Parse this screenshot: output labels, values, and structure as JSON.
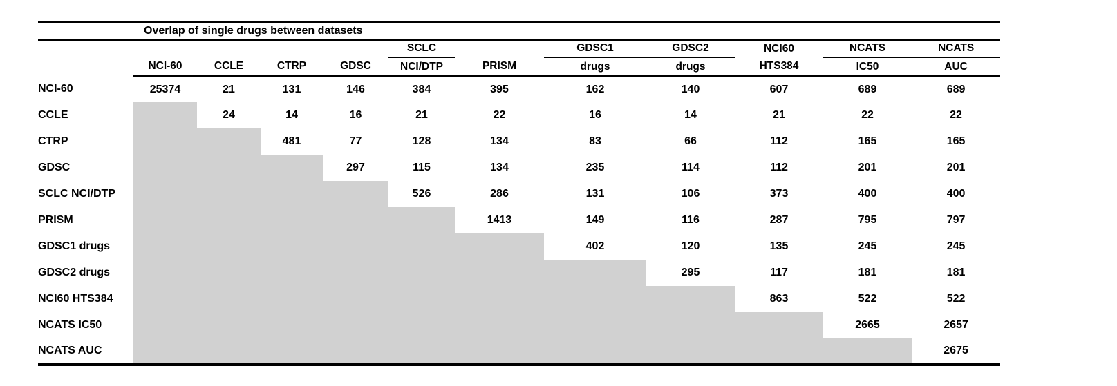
{
  "title": "Overlap of single drugs between datasets",
  "colors": {
    "lower_triangle_fill": "#d1d1d1",
    "text": "#000000",
    "rules": "#000000",
    "background": "#ffffff"
  },
  "table": {
    "columns": [
      {
        "key": "nci-60",
        "top": "",
        "label": "NCI-60",
        "group_underline": false
      },
      {
        "key": "ccle",
        "top": "",
        "label": "CCLE",
        "group_underline": false
      },
      {
        "key": "ctrp",
        "top": "",
        "label": "CTRP",
        "group_underline": false
      },
      {
        "key": "gdsc",
        "top": "",
        "label": "GDSC",
        "group_underline": false
      },
      {
        "key": "sclc-nci-dtp",
        "top": "SCLC",
        "label": "NCI/DTP",
        "group_underline": true
      },
      {
        "key": "prism",
        "top": "",
        "label": "PRISM",
        "group_underline": false
      },
      {
        "key": "gdsc1-drugs",
        "top": "GDSC1",
        "label": "drugs",
        "group_underline": true
      },
      {
        "key": "gdsc2-drugs",
        "top": "GDSC2",
        "label": "drugs",
        "group_underline": true
      },
      {
        "key": "nci60-hts384",
        "top": "NCI60",
        "label": "HTS384",
        "group_underline": false
      },
      {
        "key": "ncats-ic50",
        "top": "NCATS",
        "label": "IC50",
        "group_underline": true
      },
      {
        "key": "ncats-auc",
        "top": "NCATS",
        "label": "AUC",
        "group_underline": true
      }
    ],
    "rows": [
      {
        "label": "NCI-60",
        "values": [
          "25374",
          "21",
          "131",
          "146",
          "384",
          "395",
          "162",
          "140",
          "607",
          "689",
          "689"
        ]
      },
      {
        "label": "CCLE",
        "values": [
          null,
          "24",
          "14",
          "16",
          "21",
          "22",
          "16",
          "14",
          "21",
          "22",
          "22"
        ]
      },
      {
        "label": "CTRP",
        "values": [
          null,
          null,
          "481",
          "77",
          "128",
          "134",
          "83",
          "66",
          "112",
          "165",
          "165"
        ]
      },
      {
        "label": "GDSC",
        "values": [
          null,
          null,
          null,
          "297",
          "115",
          "134",
          "235",
          "114",
          "112",
          "201",
          "201"
        ]
      },
      {
        "label": "SCLC NCI/DTP",
        "values": [
          null,
          null,
          null,
          null,
          "526",
          "286",
          "131",
          "106",
          "373",
          "400",
          "400"
        ]
      },
      {
        "label": "PRISM",
        "values": [
          null,
          null,
          null,
          null,
          null,
          "1413",
          "149",
          "116",
          "287",
          "795",
          "797"
        ]
      },
      {
        "label": "GDSC1 drugs",
        "values": [
          null,
          null,
          null,
          null,
          null,
          null,
          "402",
          "120",
          "135",
          "245",
          "245"
        ]
      },
      {
        "label": "GDSC2 drugs",
        "values": [
          null,
          null,
          null,
          null,
          null,
          null,
          null,
          "295",
          "117",
          "181",
          "181"
        ]
      },
      {
        "label": "NCI60 HTS384",
        "values": [
          null,
          null,
          null,
          null,
          null,
          null,
          null,
          null,
          "863",
          "522",
          "522"
        ]
      },
      {
        "label": "NCATS IC50",
        "values": [
          null,
          null,
          null,
          null,
          null,
          null,
          null,
          null,
          null,
          "2665",
          "2657"
        ]
      },
      {
        "label": "NCATS AUC",
        "values": [
          null,
          null,
          null,
          null,
          null,
          null,
          null,
          null,
          null,
          null,
          "2675"
        ]
      }
    ]
  }
}
